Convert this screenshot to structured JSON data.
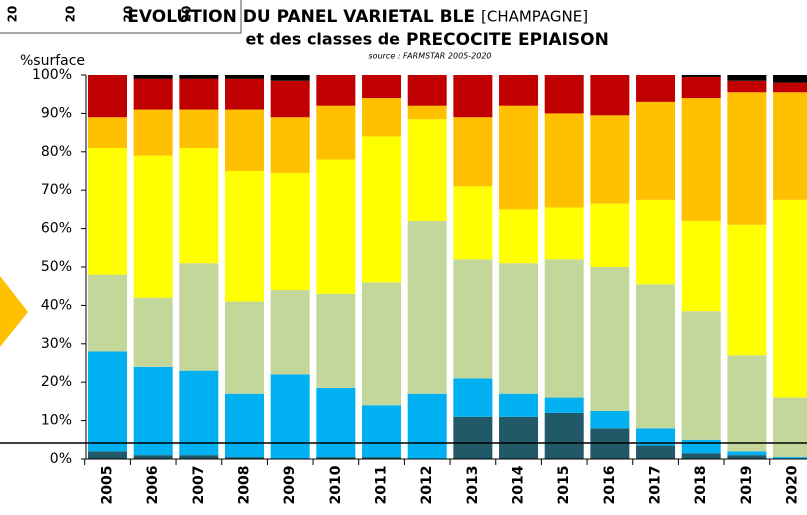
{
  "chart_data": {
    "type": "stacked_bar",
    "title": "EVOLUTION DU PANEL VARIETAL BLE",
    "title_suffix": "[CHAMPAGNE]",
    "subtitle_start": "et des classes de",
    "subtitle_bold": "PRECOCITE EPIAISON",
    "source": "source : FARMSTAR 2005-2020",
    "y_label": "%surface",
    "cropped_labels": [
      "20",
      "20",
      "20",
      "20"
    ],
    "categories": [
      "2005",
      "2006",
      "2007",
      "2008",
      "2009",
      "2010",
      "2011",
      "2012",
      "2013",
      "2014",
      "2015",
      "2016",
      "2017",
      "2018",
      "2019",
      "2020"
    ],
    "series": [
      {
        "color": "#215968",
        "values": [
          2,
          1,
          1,
          0.5,
          0,
          0.5,
          0.5,
          0,
          11,
          11,
          12,
          8,
          3.5,
          1.5,
          1,
          0
        ]
      },
      {
        "color": "#00b0f0",
        "values": [
          26,
          23,
          22,
          16.5,
          22,
          18,
          13.5,
          17,
          10,
          6,
          4,
          4.5,
          4.5,
          3.5,
          1,
          0.5
        ]
      },
      {
        "color": "#c4d79b",
        "values": [
          20,
          18,
          28,
          24,
          22,
          24.5,
          32,
          45,
          31,
          34,
          36,
          37.5,
          37.5,
          33.5,
          25,
          15.5
        ]
      },
      {
        "color": "#ffff00",
        "values": [
          33,
          37,
          30,
          34,
          30.5,
          35,
          38,
          26.5,
          19,
          14,
          13.5,
          16.5,
          22,
          23.5,
          34,
          51.5
        ]
      },
      {
        "color": "#ffc000",
        "values": [
          8,
          12,
          10,
          16,
          14.5,
          14,
          10,
          3.5,
          18,
          27,
          24.5,
          23,
          25.5,
          32,
          34.5,
          28
        ]
      },
      {
        "color": "#c00000",
        "values": [
          11,
          8,
          8,
          8,
          9.5,
          8,
          6,
          8,
          11,
          8,
          10,
          10.5,
          7,
          5.5,
          3,
          2.5
        ]
      },
      {
        "color": "#000000",
        "values": [
          0,
          1,
          1,
          1,
          1.5,
          0,
          0,
          0,
          0,
          0,
          0,
          0,
          0,
          0.5,
          1.5,
          2
        ]
      }
    ],
    "ylim": [
      0,
      100
    ],
    "yticks": [
      {
        "value": 0,
        "label": "0%"
      },
      {
        "value": 10,
        "label": "10%"
      },
      {
        "value": 20,
        "label": "20%"
      },
      {
        "value": 30,
        "label": "30%"
      },
      {
        "value": 40,
        "label": "40%"
      },
      {
        "value": 50,
        "label": "50%"
      },
      {
        "value": 60,
        "label": "60%"
      },
      {
        "value": 70,
        "label": "70%"
      },
      {
        "value": 80,
        "label": "80%"
      },
      {
        "value": 90,
        "label": "90%"
      },
      {
        "value": 100,
        "label": "100%"
      }
    ],
    "grid": false
  }
}
